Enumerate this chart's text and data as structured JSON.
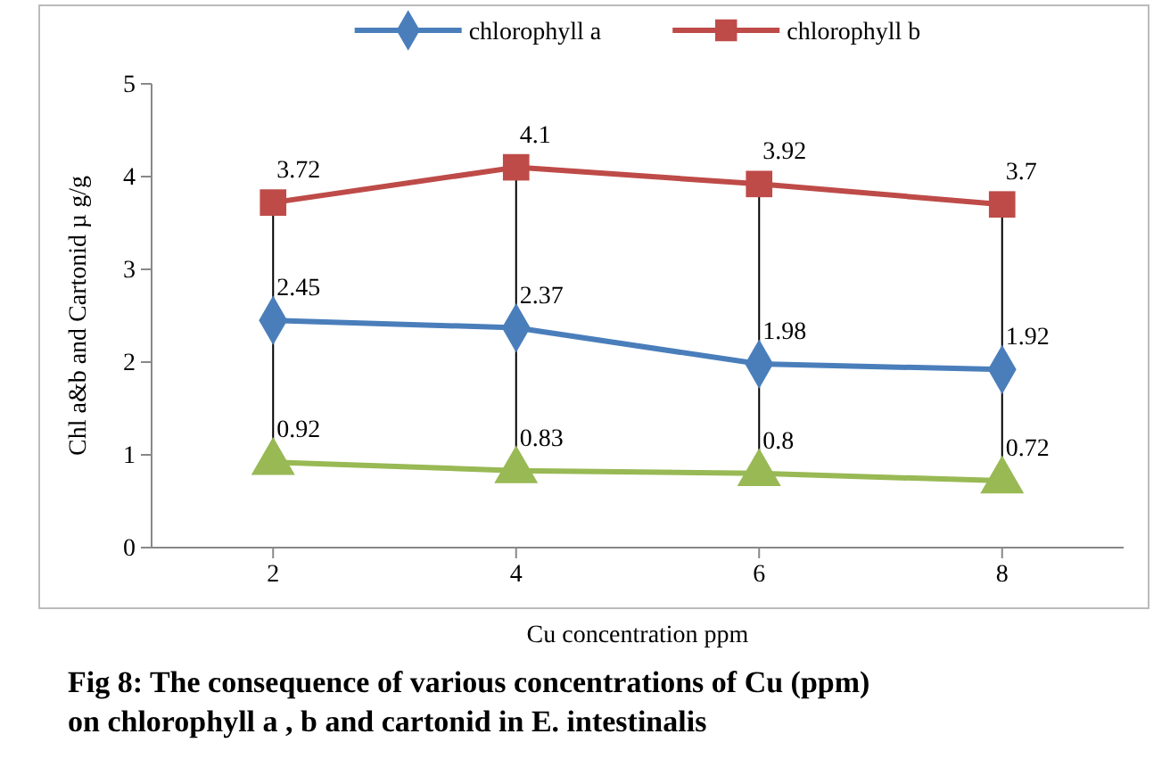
{
  "chart_data": {
    "type": "line",
    "categories": [
      "2",
      "4",
      "6",
      "8"
    ],
    "series": [
      {
        "name": "chlorophyll a",
        "color": "#4a7ebb",
        "values": [
          2.45,
          2.37,
          1.98,
          1.92
        ],
        "marker": "diamond"
      },
      {
        "name": "chlorophyll b",
        "color": "#be4b48",
        "values": [
          3.72,
          4.1,
          3.92,
          3.7
        ],
        "marker": "square"
      },
      {
        "color": "#98b954",
        "values": [
          0.92,
          0.83,
          0.8,
          0.72
        ],
        "marker": "triangle"
      }
    ],
    "ylim": [
      0,
      5
    ],
    "yticks": [
      0,
      1,
      2,
      3,
      4,
      5
    ],
    "grid": false,
    "legend": "top",
    "data_labels": true,
    "xlabel": "Cu concentration ppm",
    "ylabel": "Chl a&b and Cartonid µ g/g",
    "annotations": [
      "Fig 8: The consequence of various concentrations of Cu (ppm) on chlorophyll a , b and cartonid in E. intestinalis"
    ]
  }
}
